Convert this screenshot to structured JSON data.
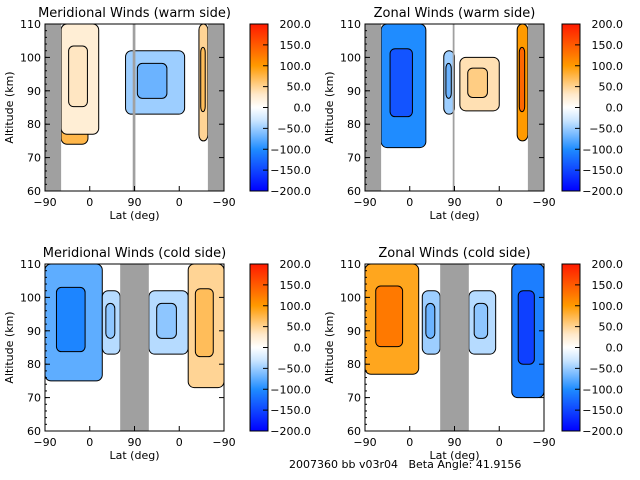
{
  "footer": {
    "id_text": "2007360 bb v03r04",
    "beta_label": "Beta Angle:",
    "beta_value": "41.9156"
  },
  "colorbar": {
    "range": [
      -200,
      200
    ],
    "ticks": [
      "200.0",
      "150.0",
      "100.0",
      "50.0",
      "0.0",
      "-50.0",
      "-100.0",
      "-150.0",
      "-200.0"
    ],
    "colors": {
      "max": "#ff1a00",
      "high": "#ff9a00",
      "mid_pos": "#ffe8c8",
      "zero": "#ffffff",
      "mid_neg": "#c8e4ff",
      "low": "#1f8cff",
      "min": "#0000ff"
    }
  },
  "chart_data": [
    {
      "type": "heatmap",
      "title": "Meridional Winds (warm side)",
      "xlabel": "Lat (deg)",
      "ylabel": "Altitude (km)",
      "xticks": [
        "-90",
        "0",
        "90",
        "0",
        "-90"
      ],
      "yticks": [
        "60",
        "70",
        "80",
        "90",
        "100",
        "110"
      ],
      "ylim": [
        60,
        110
      ],
      "grey_bands_lat_index": [
        [
          0,
          0.09
        ],
        [
          0.49,
          0.505
        ],
        [
          0.91,
          1.0
        ]
      ],
      "regions": [
        {
          "label": "positive",
          "value": 75,
          "x": [
            0.09,
            0.24
          ],
          "y": [
            74,
            110
          ]
        },
        {
          "label": "positive",
          "value": 25,
          "x": [
            0.09,
            0.3
          ],
          "y": [
            77,
            110
          ]
        },
        {
          "label": "negative",
          "value": -50,
          "x": [
            0.45,
            0.78
          ],
          "y": [
            83,
            102
          ]
        },
        {
          "label": "positive",
          "value": 50,
          "x": [
            0.86,
            0.91
          ],
          "y": [
            75,
            110
          ]
        }
      ]
    },
    {
      "type": "heatmap",
      "title": "Zonal Winds (warm side)",
      "xlabel": "Lat (deg)",
      "ylabel": "Altitude (km)",
      "xticks": [
        "-90",
        "0",
        "90",
        "0",
        "-90"
      ],
      "yticks": [
        "60",
        "70",
        "80",
        "90",
        "100",
        "110"
      ],
      "ylim": [
        60,
        110
      ],
      "grey_bands_lat_index": [
        [
          0,
          0.09
        ],
        [
          0.49,
          0.5
        ],
        [
          0.91,
          1.0
        ]
      ],
      "regions": [
        {
          "label": "negative",
          "value": -100,
          "x": [
            0.09,
            0.34
          ],
          "y": [
            73,
            110
          ]
        },
        {
          "label": "negative",
          "value": -50,
          "x": [
            0.44,
            0.5
          ],
          "y": [
            83,
            102
          ]
        },
        {
          "label": "positive",
          "value": 40,
          "x": [
            0.53,
            0.75
          ],
          "y": [
            84,
            100
          ]
        },
        {
          "label": "positive",
          "value": 100,
          "x": [
            0.85,
            0.91
          ],
          "y": [
            75,
            110
          ]
        }
      ]
    },
    {
      "type": "heatmap",
      "title": "Meridional Winds (cold side)",
      "xlabel": "Lat (deg)",
      "ylabel": "Altitude (km)",
      "xticks": [
        "-90",
        "0",
        "90",
        "0",
        "-90"
      ],
      "yticks": [
        "60",
        "70",
        "80",
        "90",
        "100",
        "110"
      ],
      "ylim": [
        60,
        110
      ],
      "grey_bands_lat_index": [
        [
          0.42,
          0.58
        ]
      ],
      "regions": [
        {
          "label": "negative",
          "value": -75,
          "x": [
            0.0,
            0.32
          ],
          "y": [
            75,
            110
          ]
        },
        {
          "label": "negative",
          "value": -40,
          "x": [
            0.32,
            0.42
          ],
          "y": [
            83,
            102
          ]
        },
        {
          "label": "negative",
          "value": -40,
          "x": [
            0.58,
            0.8
          ],
          "y": [
            83,
            102
          ]
        },
        {
          "label": "positive",
          "value": 50,
          "x": [
            0.8,
            1.0
          ],
          "y": [
            73,
            110
          ]
        }
      ]
    },
    {
      "type": "heatmap",
      "title": "Zonal Winds (cold side)",
      "xlabel": "Lat (deg)",
      "ylabel": "Altitude (km)",
      "xticks": [
        "-90",
        "0",
        "90",
        "0",
        "-90"
      ],
      "yticks": [
        "60",
        "70",
        "80",
        "90",
        "100",
        "110"
      ],
      "ylim": [
        60,
        110
      ],
      "grey_bands_lat_index": [
        [
          0.42,
          0.58
        ]
      ],
      "regions": [
        {
          "label": "positive",
          "value": 90,
          "x": [
            0.0,
            0.3
          ],
          "y": [
            77,
            110
          ]
        },
        {
          "label": "negative",
          "value": -50,
          "x": [
            0.32,
            0.42
          ],
          "y": [
            83,
            102
          ]
        },
        {
          "label": "negative",
          "value": -40,
          "x": [
            0.58,
            0.73
          ],
          "y": [
            83,
            102
          ]
        },
        {
          "label": "negative",
          "value": -110,
          "x": [
            0.82,
            1.0
          ],
          "y": [
            70,
            110
          ]
        }
      ]
    }
  ]
}
